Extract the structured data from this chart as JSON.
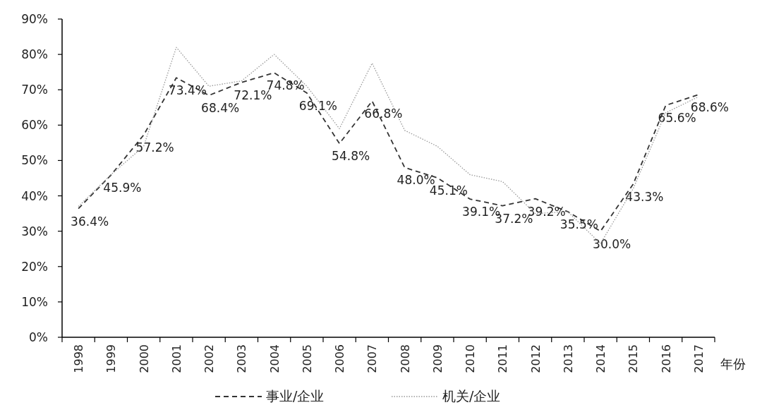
{
  "chart_data": {
    "type": "line",
    "xlabel": "年份",
    "categories": [
      "1998",
      "1999",
      "2000",
      "2001",
      "2002",
      "2003",
      "2004",
      "2005",
      "2006",
      "2007",
      "2008",
      "2009",
      "2010",
      "2011",
      "2012",
      "2013",
      "2014",
      "2015",
      "2016",
      "2017"
    ],
    "ylim": [
      0,
      90
    ],
    "yticks": [
      {
        "value": 0,
        "label": "0%"
      },
      {
        "value": 10,
        "label": "10%"
      },
      {
        "value": 20,
        "label": "20%"
      },
      {
        "value": 30,
        "label": "30%"
      },
      {
        "value": 40,
        "label": "40%"
      },
      {
        "value": 50,
        "label": "50%"
      },
      {
        "value": 60,
        "label": "60%"
      },
      {
        "value": 70,
        "label": "70%"
      },
      {
        "value": 80,
        "label": "80%"
      },
      {
        "value": 90,
        "label": "90%"
      }
    ],
    "grid": false,
    "legend": "bottom",
    "marker": "none",
    "series": [
      {
        "name": "事业/企业",
        "color": "#333333",
        "line_style": "dashed",
        "values": [
          36.4,
          45.9,
          57.2,
          73.4,
          68.4,
          72.1,
          74.8,
          69.1,
          54.8,
          66.8,
          48.0,
          45.1,
          39.1,
          37.2,
          39.2,
          35.5,
          30.0,
          43.3,
          65.6,
          68.6
        ],
        "value_labels": [
          "36.4%",
          "45.9%",
          "57.2%",
          "73.4%",
          "68.4%",
          "72.1%",
          "74.8%",
          "69.1%",
          "54.8%",
          "66.8%",
          "48.0%",
          "45.1%",
          "39.1%",
          "37.2%",
          "39.2%",
          "35.5%",
          "30.0%",
          "43.3%",
          "65.6%",
          "68.6%"
        ]
      },
      {
        "name": "机关/企业",
        "color": "#999999",
        "line_style": "dotted",
        "values": [
          37,
          46,
          54,
          82,
          71,
          72.5,
          80,
          71,
          59,
          77.5,
          58.5,
          54,
          46,
          44,
          35,
          35.5,
          26.5,
          42,
          63.5,
          68
        ]
      }
    ]
  }
}
